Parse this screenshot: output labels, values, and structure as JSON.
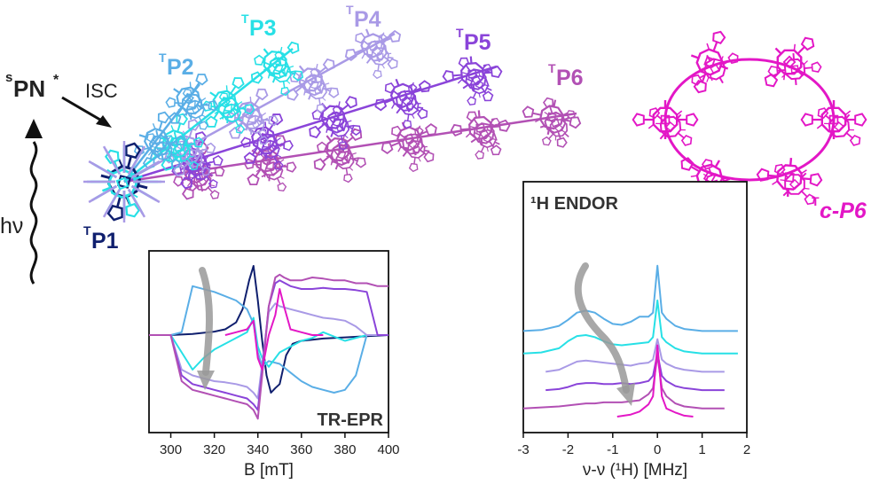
{
  "labels": {
    "spn": "PN",
    "spn_prefix": "s",
    "spn_star": "*",
    "isc": "ISC",
    "hv": "hν",
    "sup_T": "T",
    "p1": "P1",
    "p2": "P2",
    "p3": "P3",
    "p4": "P4",
    "p5": "P5",
    "p6": "P6",
    "cp6": "c-P6"
  },
  "colors": {
    "p1": "#0f1f6e",
    "p2": "#5aaee6",
    "p3": "#27e0e6",
    "p4": "#a99ae6",
    "p5": "#8a44d9",
    "p6": "#b250b4",
    "cp6": "#e317c6",
    "arrow": "#999999"
  },
  "chart_data": [
    {
      "type": "line",
      "title": "TR-EPR",
      "xlabel": "B [mT]",
      "ylabel": "",
      "xlim": [
        290,
        400
      ],
      "xticks": [
        300,
        320,
        340,
        360,
        380,
        400
      ],
      "series": [
        {
          "name": "P1",
          "color": "#0f1f6e",
          "x": [
            290,
            300,
            310,
            320,
            325,
            330,
            333,
            336,
            338,
            340,
            342,
            344,
            346,
            348,
            350,
            353,
            356,
            360,
            365,
            370,
            380,
            390,
            400
          ],
          "y": [
            0,
            0,
            0.02,
            0.06,
            0.1,
            0.22,
            0.45,
            0.95,
            1.2,
            0.6,
            -0.1,
            -0.7,
            -1.0,
            -0.92,
            -0.85,
            -0.35,
            -0.15,
            -0.1,
            -0.08,
            -0.06,
            -0.04,
            -0.02,
            0
          ]
        },
        {
          "name": "P2",
          "color": "#5aaee6",
          "x": [
            290,
            300,
            305,
            310,
            320,
            330,
            335,
            338,
            340,
            342,
            345,
            350,
            355,
            360,
            365,
            370,
            375,
            380,
            385,
            390,
            400
          ],
          "y": [
            0,
            0,
            0.05,
            0.85,
            0.75,
            0.6,
            0.45,
            0.2,
            -0.3,
            -0.55,
            -0.45,
            -0.5,
            -0.65,
            -0.8,
            -0.9,
            -0.95,
            -1.0,
            -0.95,
            -0.7,
            0,
            0
          ]
        },
        {
          "name": "P3",
          "color": "#27e0e6",
          "x": [
            290,
            300,
            305,
            310,
            315,
            320,
            325,
            330,
            335,
            338,
            340,
            342,
            345,
            350,
            355,
            360,
            365,
            370,
            380,
            390,
            400
          ],
          "y": [
            0,
            0,
            -0.3,
            -0.6,
            -0.4,
            -0.25,
            -0.15,
            -0.05,
            0.05,
            0.3,
            -0.2,
            -0.4,
            -0.55,
            -0.3,
            -0.2,
            -0.1,
            -0.05,
            0.05,
            -0.1,
            0,
            0
          ]
        },
        {
          "name": "P4",
          "color": "#a99ae6",
          "x": [
            290,
            300,
            305,
            310,
            315,
            320,
            325,
            330,
            335,
            338,
            340,
            342,
            345,
            348,
            350,
            355,
            360,
            365,
            370,
            375,
            380,
            385,
            390,
            395,
            400
          ],
          "y": [
            0,
            0,
            -0.6,
            -0.7,
            -0.75,
            -0.8,
            -0.82,
            -0.85,
            -0.9,
            -1.0,
            -1.1,
            -0.5,
            0.4,
            0.55,
            0.5,
            0.45,
            0.4,
            0.35,
            0.3,
            0.28,
            0.25,
            0.15,
            0,
            0,
            0
          ]
        },
        {
          "name": "P5",
          "color": "#8a44d9",
          "x": [
            290,
            300,
            305,
            310,
            315,
            320,
            325,
            330,
            335,
            338,
            340,
            342,
            345,
            348,
            350,
            355,
            360,
            365,
            370,
            375,
            380,
            385,
            390,
            395,
            400
          ],
          "y": [
            0,
            0,
            -0.7,
            -0.85,
            -0.9,
            -0.95,
            -1.0,
            -1.05,
            -1.1,
            -1.2,
            -1.3,
            -0.6,
            0.5,
            0.9,
            0.95,
            0.85,
            0.8,
            0.8,
            0.82,
            0.8,
            0.8,
            0.78,
            0.75,
            0,
            0
          ]
        },
        {
          "name": "P6",
          "color": "#b250b4",
          "x": [
            290,
            300,
            305,
            310,
            315,
            320,
            325,
            330,
            335,
            338,
            340,
            342,
            345,
            348,
            350,
            352,
            355,
            360,
            365,
            370,
            375,
            380,
            385,
            390,
            395,
            400
          ],
          "y": [
            0,
            0,
            -0.8,
            -0.95,
            -1.0,
            -1.05,
            -1.1,
            -1.15,
            -1.2,
            -1.3,
            -1.45,
            -0.7,
            0.5,
            1.0,
            1.05,
            1.0,
            0.95,
            0.95,
            1.0,
            0.98,
            0.95,
            0.95,
            0.9,
            0.9,
            0.85,
            0.85
          ]
        },
        {
          "name": "c-P6",
          "color": "#e317c6",
          "x": [
            325,
            330,
            335,
            338,
            340,
            342,
            345,
            348,
            350,
            352,
            355,
            360,
            365,
            370
          ],
          "y": [
            0,
            0.05,
            0.1,
            0.25,
            -0.4,
            -0.6,
            0,
            0.35,
            0.8,
            0.5,
            0.1,
            0.05,
            0,
            0
          ]
        }
      ]
    },
    {
      "type": "line",
      "title": "¹H ENDOR",
      "xlabel": "ν-ν (¹H) [MHz]",
      "ylabel": "",
      "xlim": [
        -3,
        2
      ],
      "xticks": [
        -3,
        -2,
        -1,
        0,
        1,
        2
      ],
      "series": [
        {
          "name": "P2",
          "color": "#5aaee6",
          "offset": 4.2,
          "x": [
            -3,
            -2.6,
            -2.2,
            -2.0,
            -1.8,
            -1.6,
            -1.4,
            -1.2,
            -1.0,
            -0.8,
            -0.6,
            -0.4,
            -0.2,
            -0.1,
            0,
            0.1,
            0.2,
            0.4,
            0.6,
            0.8,
            1.0,
            1.2,
            1.5,
            1.8
          ],
          "y": [
            0,
            0.05,
            0.25,
            0.55,
            0.9,
            1.0,
            0.9,
            0.6,
            0.35,
            0.3,
            0.45,
            0.7,
            0.7,
            0.9,
            3.2,
            0.9,
            0.6,
            0.25,
            0.1,
            0.05,
            0,
            0,
            0,
            0
          ]
        },
        {
          "name": "P3",
          "color": "#27e0e6",
          "offset": 3.1,
          "x": [
            -3,
            -2.6,
            -2.2,
            -2.0,
            -1.8,
            -1.6,
            -1.4,
            -1.2,
            -1.0,
            -0.8,
            -0.6,
            -0.4,
            -0.2,
            -0.1,
            0,
            0.1,
            0.2,
            0.4,
            0.6,
            0.8,
            1.0,
            1.2,
            1.5,
            1.8
          ],
          "y": [
            0,
            0.05,
            0.25,
            0.6,
            0.85,
            0.9,
            0.8,
            0.6,
            0.45,
            0.4,
            0.45,
            0.5,
            0.55,
            0.8,
            2.6,
            0.8,
            0.55,
            0.25,
            0.1,
            0.05,
            0,
            0,
            0,
            0
          ]
        },
        {
          "name": "P4",
          "color": "#a99ae6",
          "offset": 2.2,
          "x": [
            -2.5,
            -2.2,
            -2.0,
            -1.8,
            -1.6,
            -1.4,
            -1.2,
            -1.0,
            -0.8,
            -0.6,
            -0.4,
            -0.2,
            -0.1,
            0,
            0.1,
            0.2,
            0.4,
            0.6,
            0.8,
            1.0,
            1.2,
            1.5
          ],
          "y": [
            0,
            0.1,
            0.3,
            0.5,
            0.55,
            0.5,
            0.45,
            0.4,
            0.35,
            0.3,
            0.4,
            0.45,
            0.6,
            1.6,
            0.6,
            0.4,
            0.2,
            0.1,
            0.05,
            0,
            0,
            0
          ]
        },
        {
          "name": "P5",
          "color": "#8a44d9",
          "offset": 1.3,
          "x": [
            -2.5,
            -2.2,
            -2.0,
            -1.8,
            -1.6,
            -1.4,
            -1.2,
            -1.0,
            -0.8,
            -0.6,
            -0.4,
            -0.2,
            -0.1,
            0,
            0.1,
            0.2,
            0.4,
            0.6,
            0.8,
            1.0,
            1.2,
            1.5
          ],
          "y": [
            0,
            0.05,
            0.15,
            0.3,
            0.35,
            0.35,
            0.3,
            0.3,
            0.35,
            0.3,
            0.35,
            0.45,
            0.7,
            1.8,
            0.7,
            0.45,
            0.2,
            0.1,
            0.05,
            0,
            0,
            0
          ]
        },
        {
          "name": "P6",
          "color": "#b250b4",
          "offset": 0.4,
          "x": [
            -3,
            -2.6,
            -2.2,
            -2.0,
            -1.8,
            -1.6,
            -1.4,
            -1.2,
            -1.0,
            -0.8,
            -0.6,
            -0.4,
            -0.2,
            -0.1,
            0,
            0.1,
            0.2,
            0.4,
            0.6,
            0.8,
            1.0,
            1.2,
            1.5
          ],
          "y": [
            0,
            0.05,
            0.1,
            0.15,
            0.2,
            0.25,
            0.25,
            0.3,
            0.3,
            0.3,
            0.35,
            0.4,
            0.7,
            1.0,
            2.6,
            1.0,
            0.6,
            0.25,
            0.1,
            0.05,
            0,
            0,
            0
          ]
        },
        {
          "name": "c-P6",
          "color": "#e317c6",
          "offset": 0,
          "x": [
            -0.9,
            -0.6,
            -0.4,
            -0.2,
            -0.1,
            0,
            0.1,
            0.2,
            0.4,
            0.6,
            0.8
          ],
          "y": [
            0,
            0.1,
            0.25,
            0.6,
            1.0,
            3.5,
            1.0,
            0.4,
            0.2,
            0.05,
            0
          ]
        }
      ]
    }
  ]
}
